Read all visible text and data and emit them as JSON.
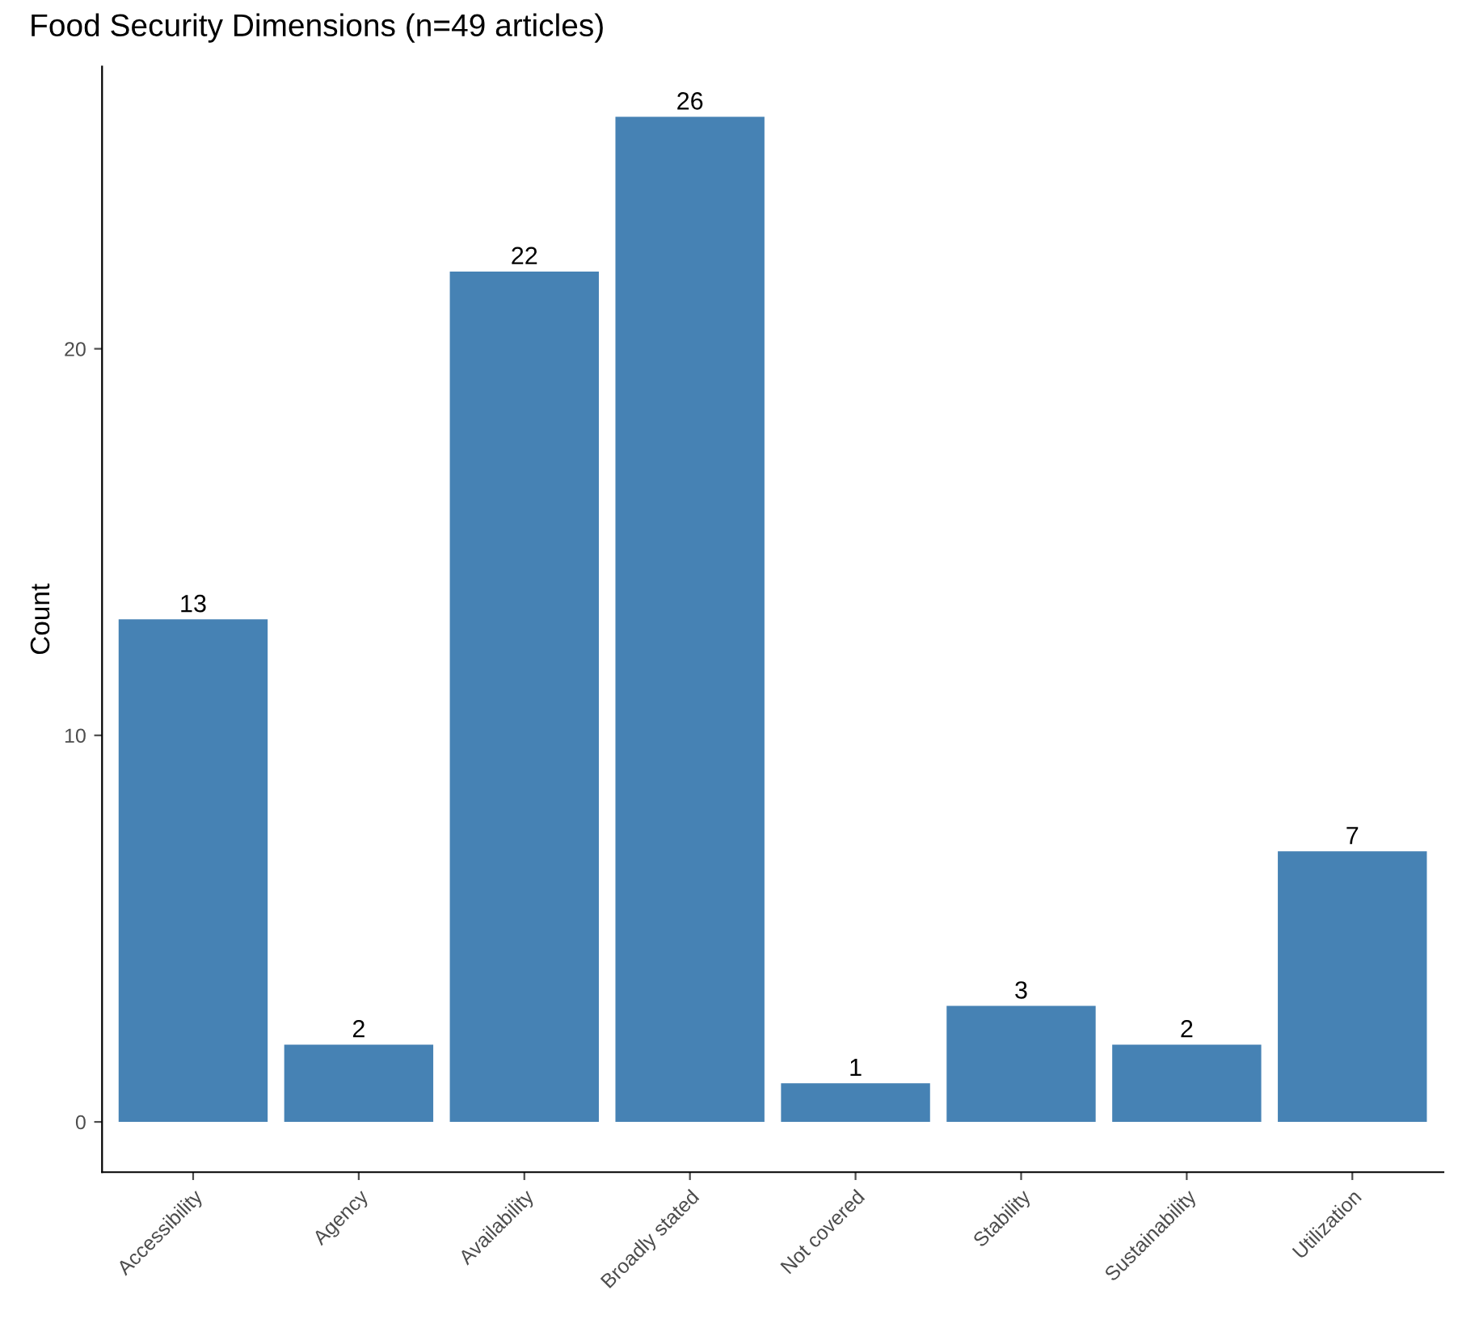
{
  "chart_data": {
    "type": "bar",
    "title": "Food Security Dimensions (n=49 articles)",
    "ylabel": "Count",
    "categories": [
      "Accessibility",
      "Agency",
      "Availability",
      "Broadly stated",
      "Not covered",
      "Stability",
      "Sustainability",
      "Utilization"
    ],
    "values": [
      13,
      2,
      22,
      26,
      1,
      3,
      2,
      7
    ],
    "color": "#4682b4",
    "ylim": [
      -1.3,
      27.3
    ],
    "yticks": [
      0,
      10,
      20
    ],
    "grid": false,
    "data_labels": true
  }
}
